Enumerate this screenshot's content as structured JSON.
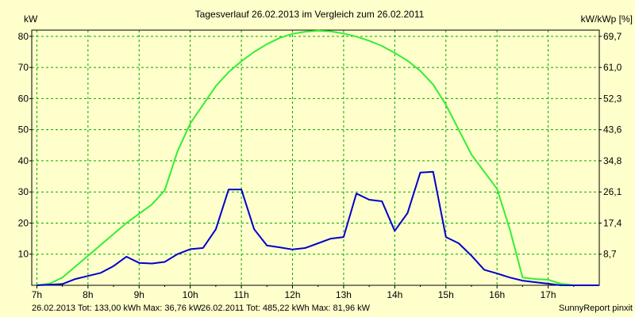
{
  "chart_data": {
    "type": "line",
    "title": "Tagesverlauf 26.02.2013 im Vergleich zum 26.02.2011",
    "ylabel_left": "kW",
    "ylabel_right": "kW/kWp [%]",
    "x_tick_labels": [
      "7h",
      "8h",
      "9h",
      "10h",
      "11h",
      "12h",
      "13h",
      "14h",
      "15h",
      "16h",
      "17h"
    ],
    "x_range_hours": [
      6.9,
      18.0
    ],
    "ylim": [
      0,
      82
    ],
    "y_ticks_left": [
      "10",
      "20",
      "30",
      "40",
      "50",
      "60",
      "70",
      "80"
    ],
    "y_ticks_right": [
      "8,7",
      "17,4",
      "26,1",
      "34,8",
      "43,6",
      "52,3",
      "61,0",
      "69,7"
    ],
    "grid": true,
    "series": [
      {
        "name": "26.02.2013",
        "color": "#0000cc",
        "x": [
          7.0,
          7.25,
          7.5,
          7.75,
          8.0,
          8.25,
          8.5,
          8.75,
          9.0,
          9.25,
          9.5,
          9.75,
          10.0,
          10.25,
          10.5,
          10.75,
          11.0,
          11.25,
          11.5,
          11.75,
          12.0,
          12.25,
          12.5,
          12.75,
          13.0,
          13.25,
          13.5,
          13.75,
          14.0,
          14.25,
          14.5,
          14.75,
          15.0,
          15.25,
          15.5,
          15.75,
          16.0,
          16.25,
          16.5,
          16.75,
          17.0,
          17.25,
          17.5,
          17.75,
          18.0
        ],
        "values": [
          0,
          0.2,
          0.4,
          2.0,
          3.0,
          4.0,
          6.2,
          9.2,
          7.2,
          7.0,
          7.5,
          10.0,
          11.6,
          12.0,
          18.0,
          30.8,
          30.8,
          18.0,
          12.8,
          12.2,
          11.5,
          12.0,
          13.5,
          15.0,
          15.5,
          29.5,
          27.5,
          27.0,
          17.5,
          23.2,
          36.2,
          36.5,
          15.5,
          13.5,
          9.5,
          5.0,
          3.8,
          2.5,
          1.5,
          1.0,
          0.5,
          0,
          0,
          0,
          0
        ]
      },
      {
        "name": "26.02.2011",
        "color": "#33ee33",
        "x": [
          7.0,
          7.25,
          7.5,
          7.75,
          8.0,
          8.25,
          8.5,
          8.75,
          9.0,
          9.25,
          9.5,
          9.75,
          10.0,
          10.25,
          10.5,
          10.75,
          11.0,
          11.25,
          11.5,
          11.75,
          12.0,
          12.25,
          12.5,
          12.75,
          13.0,
          13.25,
          13.5,
          13.75,
          14.0,
          14.25,
          14.5,
          14.75,
          15.0,
          15.25,
          15.5,
          15.75,
          16.0,
          16.25,
          16.5,
          16.75,
          17.0,
          17.25,
          17.5,
          17.75,
          18.0
        ],
        "values": [
          0,
          0.5,
          2.5,
          6.0,
          9.5,
          13.0,
          16.5,
          20.0,
          23.0,
          26.0,
          30.5,
          43.0,
          52.0,
          58.0,
          64.0,
          68.5,
          72.0,
          75.0,
          77.5,
          79.5,
          80.8,
          81.5,
          81.8,
          81.6,
          80.9,
          79.9,
          78.6,
          76.9,
          74.7,
          72.2,
          68.9,
          64.5,
          58.0,
          50.0,
          42.0,
          36.5,
          31.0,
          18.0,
          2.5,
          2.0,
          1.8,
          0.5,
          0,
          0,
          0
        ]
      }
    ]
  },
  "footer": {
    "series1_text": "26.02.2013 Tot: 133,00 kWh Max: 36,76 kW",
    "series2_text": "26.02.2011 Tot: 485,22 kWh Max: 81,96 kW",
    "credit": "SunnyReport pinxit"
  }
}
